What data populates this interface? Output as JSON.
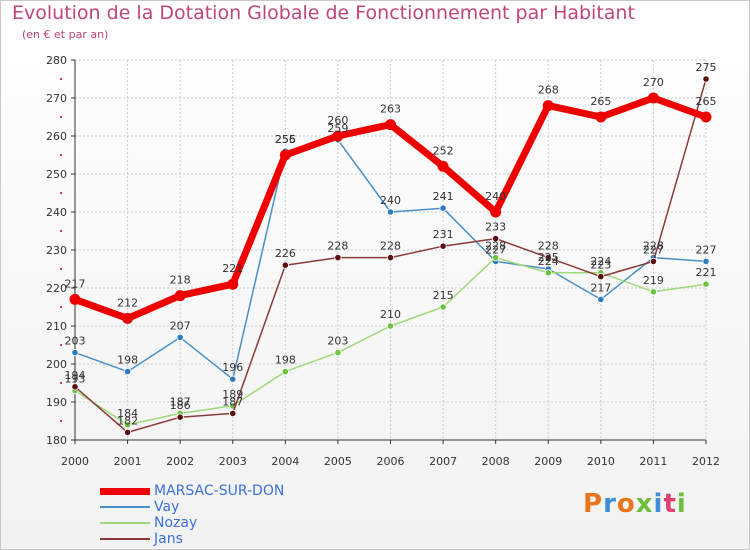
{
  "header": {
    "title": "Evolution de la Dotation Globale de Fonctionnement par Habitant",
    "subtitle": "(en € et par an)"
  },
  "brand": {
    "text": "Proxiti"
  },
  "colors": {
    "title": "#c0467a",
    "axis": "#333333",
    "grid": "#cccccc",
    "red_ticks": "#cc0000"
  },
  "chart_data": {
    "type": "line",
    "title": "Evolution de la Dotation Globale de Fonctionnement par Habitant",
    "subtitle": "(en € et par an)",
    "xlabel": "",
    "ylabel": "",
    "x": [
      2000,
      2001,
      2002,
      2003,
      2004,
      2005,
      2006,
      2007,
      2008,
      2009,
      2010,
      2011,
      2012
    ],
    "y_ticks": [
      180,
      190,
      200,
      210,
      220,
      230,
      240,
      250,
      260,
      270,
      280
    ],
    "ylim": [
      180,
      280
    ],
    "grid": true,
    "legend_position": "bottom-left",
    "series": [
      {
        "name": "Vay",
        "color": "#4a8fc8",
        "marker": "#2f7bbf",
        "values": [
          203,
          198,
          207,
          196,
          256,
          259,
          240,
          241,
          227,
          225,
          217,
          228,
          227
        ],
        "labels": [
          "203",
          "198",
          "207",
          "196",
          "256",
          "259",
          "240",
          "241",
          "227",
          "225",
          "217",
          "228",
          "227"
        ]
      },
      {
        "name": "Nozay",
        "color": "#9fd87a",
        "marker": "#6ec43f",
        "values": [
          193,
          184,
          187,
          189,
          198,
          203,
          210,
          215,
          228,
          224,
          224,
          219,
          221
        ],
        "labels": [
          "193",
          "184",
          "187",
          "189",
          "198",
          "203",
          "210",
          "215",
          "228",
          "224",
          "224",
          "219",
          "221"
        ]
      },
      {
        "name": "Jans",
        "color": "#8a3a3a",
        "marker": "#5a1010",
        "values": [
          194,
          182,
          186,
          187,
          226,
          228,
          228,
          231,
          233,
          228,
          223,
          227,
          275
        ],
        "labels": [
          "194",
          "182",
          "186",
          "187",
          "226",
          "228",
          "228",
          "231",
          "233",
          "228",
          "223",
          "227",
          "275"
        ]
      },
      {
        "name": "MARSAC-SUR-DON",
        "color": "#ee0000",
        "marker": "#ee0000",
        "values": [
          217,
          212,
          218,
          221,
          255,
          260,
          263,
          252,
          240,
          268,
          265,
          270,
          265
        ],
        "labels": [
          "217",
          "212",
          "218",
          "221",
          "255",
          "260",
          "263",
          "252",
          "240",
          "268",
          "265",
          "270",
          "265"
        ]
      }
    ]
  },
  "legend": [
    {
      "name": "MARSAC-SUR-DON",
      "color": "#ee0000",
      "text_color": "#3e6fd8",
      "thick": true
    },
    {
      "name": "Vay",
      "color": "#4a8fc8",
      "text_color": "#3e6fd8",
      "thick": false
    },
    {
      "name": "Nozay",
      "color": "#9fd87a",
      "text_color": "#3e6fd8",
      "thick": false
    },
    {
      "name": "Jans",
      "color": "#8a3a3a",
      "text_color": "#3e6fd8",
      "thick": false
    }
  ]
}
